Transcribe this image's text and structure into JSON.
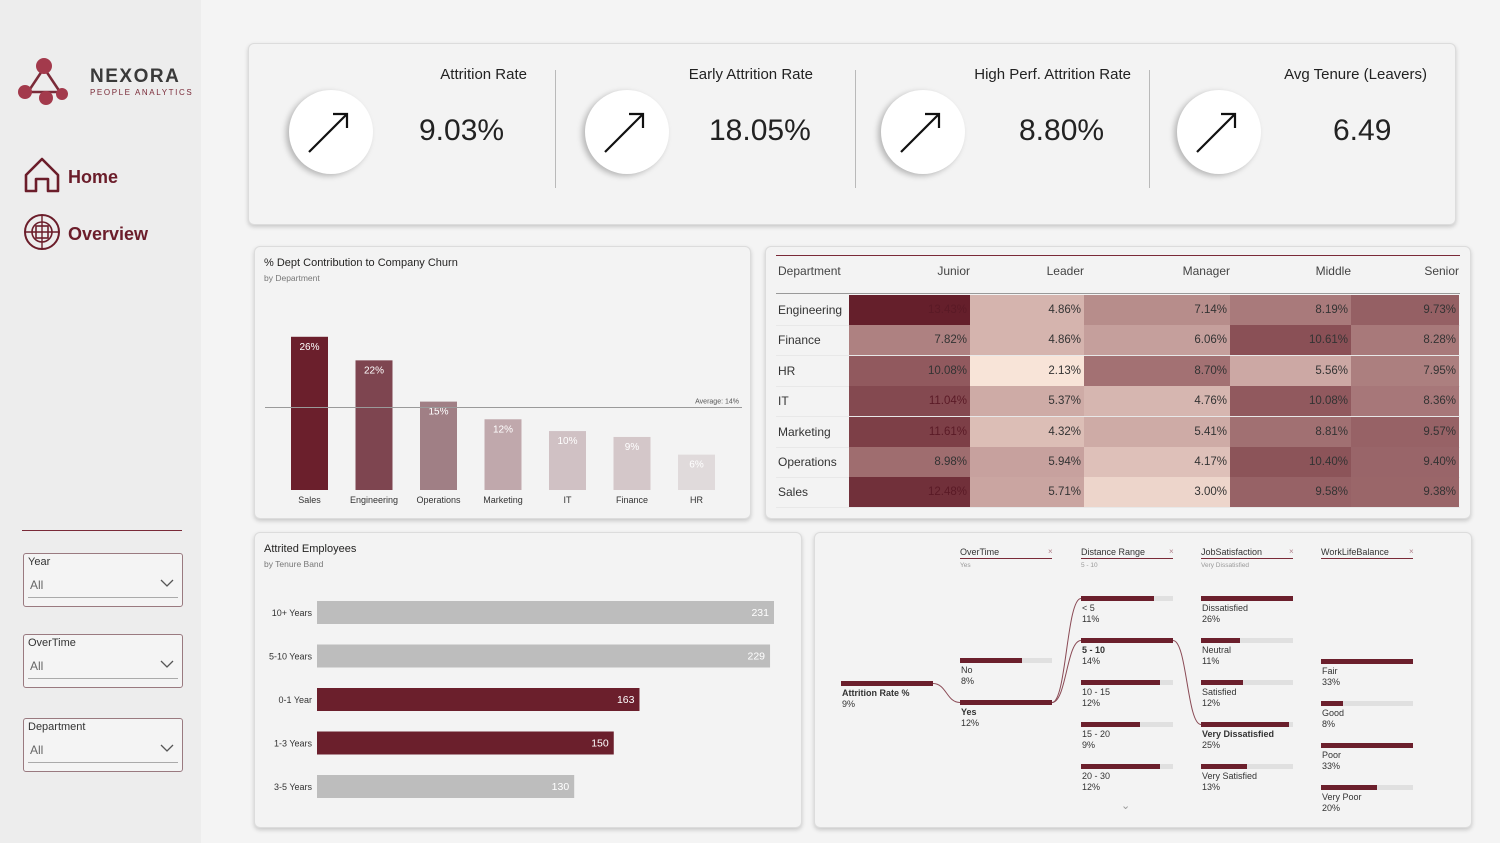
{
  "brand": {
    "name": "NEXORA",
    "subtitle": "PEOPLE ANALYTICS"
  },
  "nav": [
    {
      "label": "Home",
      "icon": "home-icon"
    },
    {
      "label": "Overview",
      "icon": "overview-icon"
    }
  ],
  "filters": [
    {
      "title": "Year",
      "value": "All"
    },
    {
      "title": "OverTime",
      "value": "All"
    },
    {
      "title": "Department",
      "value": "All"
    }
  ],
  "kpis": [
    {
      "title": "Attrition Rate",
      "value": "9.03%"
    },
    {
      "title": "Early Attrition Rate",
      "value": "18.05%"
    },
    {
      "title": "High Perf. Attrition Rate",
      "value": "8.80%"
    },
    {
      "title": "Avg Tenure (Leavers)",
      "value": "6.49"
    }
  ],
  "colors": {
    "accent": "#6b1f2c",
    "bar_grey": "#bdbdbd"
  },
  "dept_chart": {
    "title": "% Dept Contribution to Company Churn",
    "subtitle": "by Department",
    "chart_data": {
      "type": "bar",
      "categories": [
        "Sales",
        "Engineering",
        "Operations",
        "Marketing",
        "IT",
        "Finance",
        "HR"
      ],
      "values": [
        26,
        22,
        15,
        12,
        10,
        9,
        6
      ],
      "value_labels": [
        "26%",
        "22%",
        "15%",
        "12%",
        "10%",
        "9%",
        "6%"
      ],
      "colors": [
        "#6b1f2c",
        "#7e4550",
        "#a07f85",
        "#c0a8ac",
        "#d0c1c4",
        "#d4c7c9",
        "#e0dadb"
      ],
      "average_line": 14,
      "average_label": "Average: 14%",
      "ylim": [
        0,
        28
      ]
    }
  },
  "heatmap": {
    "columns": [
      "Department",
      "Junior",
      "Leader",
      "Manager",
      "Middle",
      "Senior"
    ],
    "rows": [
      {
        "dept": "Engineering",
        "values": [
          "13.43%",
          "4.86%",
          "7.14%",
          "8.19%",
          "9.73%"
        ],
        "nums": [
          13.43,
          4.86,
          7.14,
          8.19,
          9.73
        ]
      },
      {
        "dept": "Finance",
        "values": [
          "7.82%",
          "4.86%",
          "6.06%",
          "10.61%",
          "8.28%"
        ],
        "nums": [
          7.82,
          4.86,
          6.06,
          10.61,
          8.28
        ]
      },
      {
        "dept": "HR",
        "values": [
          "10.08%",
          "2.13%",
          "8.70%",
          "5.56%",
          "7.95%"
        ],
        "nums": [
          10.08,
          2.13,
          8.7,
          5.56,
          7.95
        ]
      },
      {
        "dept": "IT",
        "values": [
          "11.04%",
          "5.37%",
          "4.76%",
          "10.08%",
          "8.36%"
        ],
        "nums": [
          11.04,
          5.37,
          4.76,
          10.08,
          8.36
        ]
      },
      {
        "dept": "Marketing",
        "values": [
          "11.61%",
          "4.32%",
          "5.41%",
          "8.81%",
          "9.57%"
        ],
        "nums": [
          11.61,
          4.32,
          5.41,
          8.81,
          9.57
        ]
      },
      {
        "dept": "Operations",
        "values": [
          "8.98%",
          "5.94%",
          "4.17%",
          "10.40%",
          "9.40%"
        ],
        "nums": [
          8.98,
          5.94,
          4.17,
          10.4,
          9.4
        ]
      },
      {
        "dept": "Sales",
        "values": [
          "12.48%",
          "5.71%",
          "3.00%",
          "9.58%",
          "9.38%"
        ],
        "nums": [
          12.48,
          5.71,
          3.0,
          9.58,
          9.38
        ]
      }
    ]
  },
  "tenure_chart": {
    "title": "Attrited Employees",
    "subtitle": "by Tenure Band",
    "chart_data": {
      "type": "bar",
      "orientation": "horizontal",
      "categories": [
        "10+ Years",
        "5-10 Years",
        "0-1 Year",
        "1-3 Years",
        "3-5 Years"
      ],
      "values": [
        231,
        229,
        163,
        150,
        130
      ],
      "colors": [
        "#bdbdbd",
        "#bdbdbd",
        "#6b1f2c",
        "#6b1f2c",
        "#bdbdbd"
      ],
      "xlim": [
        0,
        231
      ]
    }
  },
  "decomp_tree": {
    "root": {
      "label": "Attrition Rate %",
      "value": "9%"
    },
    "levels": [
      {
        "field": "OverTime",
        "filter": "Yes",
        "close": "×",
        "nodes": [
          {
            "label": "No",
            "value": "8%",
            "share": 8,
            "selected": false
          },
          {
            "label": "Yes",
            "value": "12%",
            "share": 12,
            "selected": true
          }
        ]
      },
      {
        "field": "Distance Range",
        "filter": "5 - 10",
        "close": "×",
        "more": "⌄",
        "nodes": [
          {
            "label": "< 5",
            "value": "11%",
            "share": 11,
            "selected": false
          },
          {
            "label": "5 - 10",
            "value": "14%",
            "share": 14,
            "selected": true
          },
          {
            "label": "10 - 15",
            "value": "12%",
            "share": 12,
            "selected": false
          },
          {
            "label": "15 - 20",
            "value": "9%",
            "share": 9,
            "selected": false
          },
          {
            "label": "20 - 30",
            "value": "12%",
            "share": 12,
            "selected": false
          }
        ]
      },
      {
        "field": "JobSatisfaction",
        "filter": "Very Dissatisfied",
        "close": "×",
        "nodes": [
          {
            "label": "Dissatisfied",
            "value": "26%",
            "share": 26,
            "selected": false
          },
          {
            "label": "Neutral",
            "value": "11%",
            "share": 11,
            "selected": false
          },
          {
            "label": "Satisfied",
            "value": "12%",
            "share": 12,
            "selected": false
          },
          {
            "label": "Very Dissatisfied",
            "value": "25%",
            "share": 25,
            "selected": true
          },
          {
            "label": "Very Satisfied",
            "value": "13%",
            "share": 13,
            "selected": false
          }
        ]
      },
      {
        "field": "WorkLifeBalance",
        "filter": "",
        "close": "×",
        "nodes": [
          {
            "label": "Fair",
            "value": "33%",
            "share": 33,
            "selected": false
          },
          {
            "label": "Good",
            "value": "8%",
            "share": 8,
            "selected": false
          },
          {
            "label": "Poor",
            "value": "33%",
            "share": 33,
            "selected": false
          },
          {
            "label": "Very Poor",
            "value": "20%",
            "share": 20,
            "selected": false
          }
        ]
      }
    ]
  }
}
